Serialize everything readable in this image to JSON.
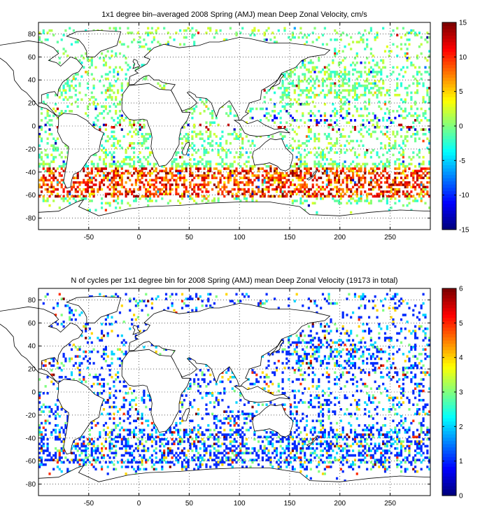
{
  "chart_data": [
    {
      "type": "heatmap",
      "title": "1x1 degree bin–averaged 2008 Spring (AMJ) mean Deep Zonal Velocity, cm/s",
      "xlabel": "",
      "ylabel": "",
      "xlim": [
        -100,
        290
      ],
      "ylim": [
        -90,
        90
      ],
      "x_ticks": [
        -50,
        0,
        50,
        100,
        150,
        200,
        250
      ],
      "y_ticks": [
        -80,
        -60,
        -40,
        -20,
        0,
        20,
        40,
        60,
        80
      ],
      "grid": "dotted",
      "colormap": "jet",
      "colorbar": {
        "min": -15,
        "max": 15,
        "ticks": [
          -15,
          -10,
          -5,
          0,
          5,
          10,
          15
        ],
        "placement": "right"
      },
      "pattern": "velocity"
    },
    {
      "type": "heatmap",
      "title": "N of cycles per 1x1 degree bin for 2008 Spring (AMJ) mean Deep Zonal Velocity (19173 in total)",
      "xlabel": "",
      "ylabel": "",
      "xlim": [
        -100,
        290
      ],
      "ylim": [
        -90,
        90
      ],
      "x_ticks": [
        -50,
        0,
        50,
        100,
        150,
        200,
        250
      ],
      "y_ticks": [
        -80,
        -60,
        -40,
        -20,
        0,
        20,
        40,
        60,
        80
      ],
      "grid": "dotted",
      "colormap": "jet",
      "colorbar": {
        "min": 0,
        "max": 6,
        "ticks": [
          0,
          1,
          2,
          3,
          4,
          5,
          6
        ],
        "placement": "right"
      },
      "pattern": "count"
    }
  ]
}
